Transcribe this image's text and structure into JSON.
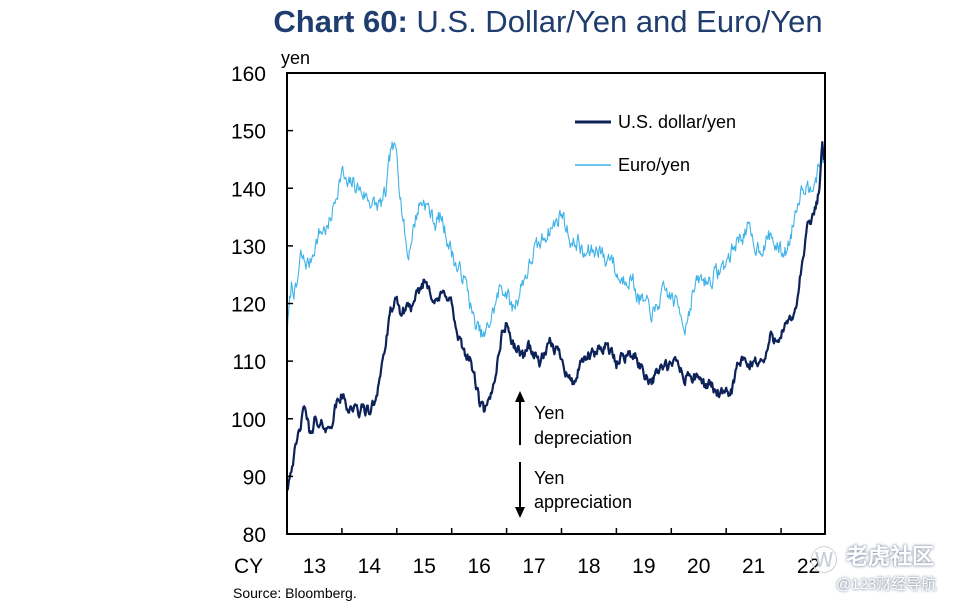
{
  "page": {
    "title_bold": "Chart 60:",
    "title_rest": " U.S. Dollar/Yen and Euro/Yen",
    "source": "Source:  Bloomberg."
  },
  "watermark": {
    "logo": "Ⓦ",
    "name": "老虎社区",
    "sub": "@123财经导航"
  },
  "colors": {
    "usd": "#0d2258",
    "eur": "#3fb3e8",
    "axis": "#000000",
    "title": "#1f3d6e"
  },
  "chart_data": {
    "type": "line",
    "title": "Chart 60: U.S. Dollar/Yen and Euro/Yen",
    "ylabel": "yen",
    "xlabel": "",
    "ylim": [
      80,
      160
    ],
    "yticks": [
      80,
      90,
      100,
      110,
      120,
      130,
      140,
      150,
      160
    ],
    "xlim": [
      2013,
      2022.8
    ],
    "x_prefix": "CY",
    "xtick_labels": [
      "13",
      "14",
      "15",
      "16",
      "17",
      "18",
      "19",
      "20",
      "21",
      "22"
    ],
    "legend": [
      "U.S. dollar/yen",
      "Euro/yen"
    ],
    "annotations": {
      "depreciation_line1": "Yen",
      "depreciation_line2": "depreciation",
      "appreciation_line1": "Yen",
      "appreciation_line2": "appreciation"
    },
    "series": [
      {
        "name": "U.S. dollar/yen",
        "x": [
          2013.0,
          2013.08,
          2013.17,
          2013.25,
          2013.33,
          2013.42,
          2013.5,
          2013.58,
          2013.67,
          2013.75,
          2013.83,
          2013.92,
          2014.0,
          2014.1,
          2014.2,
          2014.3,
          2014.4,
          2014.5,
          2014.6,
          2014.7,
          2014.8,
          2014.9,
          2015.0,
          2015.1,
          2015.2,
          2015.3,
          2015.4,
          2015.5,
          2015.6,
          2015.7,
          2015.8,
          2015.9,
          2016.0,
          2016.1,
          2016.2,
          2016.3,
          2016.4,
          2016.5,
          2016.6,
          2016.7,
          2016.8,
          2016.9,
          2017.0,
          2017.1,
          2017.2,
          2017.3,
          2017.4,
          2017.5,
          2017.6,
          2017.7,
          2017.8,
          2017.9,
          2018.0,
          2018.1,
          2018.2,
          2018.3,
          2018.4,
          2018.5,
          2018.6,
          2018.7,
          2018.8,
          2018.9,
          2019.0,
          2019.1,
          2019.2,
          2019.3,
          2019.4,
          2019.5,
          2019.6,
          2019.7,
          2019.8,
          2019.9,
          2020.0,
          2020.1,
          2020.2,
          2020.25,
          2020.3,
          2020.4,
          2020.5,
          2020.6,
          2020.7,
          2020.8,
          2020.9,
          2021.0,
          2021.1,
          2021.2,
          2021.3,
          2021.4,
          2021.5,
          2021.6,
          2021.7,
          2021.8,
          2021.9,
          2022.0,
          2022.1,
          2022.2,
          2022.3,
          2022.4,
          2022.5,
          2022.6,
          2022.7,
          2022.75,
          2022.8
        ],
        "values": [
          88,
          92,
          95,
          99,
          102,
          97,
          100,
          98,
          99,
          98,
          100,
          103,
          104,
          102,
          102,
          101,
          102,
          101,
          103,
          108,
          113,
          119,
          120,
          118,
          120,
          119,
          122,
          124,
          123,
          120,
          121,
          122,
          120,
          114,
          112,
          111,
          108,
          103,
          101,
          103,
          108,
          114,
          117,
          113,
          112,
          111,
          113,
          111,
          110,
          111,
          113,
          112,
          111,
          108,
          106,
          108,
          110,
          111,
          111,
          112,
          113,
          112,
          109,
          111,
          111,
          111,
          110,
          108,
          107,
          107,
          109,
          109,
          109,
          110,
          108,
          106,
          108,
          107,
          107,
          106,
          106,
          105,
          104,
          104,
          105,
          109,
          110,
          109,
          110,
          110,
          110,
          114,
          114,
          115,
          116,
          117,
          121,
          128,
          134,
          135,
          140,
          148,
          145
        ]
      },
      {
        "name": "Euro/yen",
        "x": [
          2013.0,
          2013.08,
          2013.17,
          2013.25,
          2013.33,
          2013.42,
          2013.5,
          2013.58,
          2013.67,
          2013.75,
          2013.83,
          2013.92,
          2014.0,
          2014.1,
          2014.2,
          2014.3,
          2014.4,
          2014.5,
          2014.6,
          2014.7,
          2014.8,
          2014.9,
          2015.0,
          2015.1,
          2015.2,
          2015.3,
          2015.4,
          2015.5,
          2015.6,
          2015.7,
          2015.8,
          2015.9,
          2016.0,
          2016.1,
          2016.2,
          2016.3,
          2016.4,
          2016.5,
          2016.6,
          2016.7,
          2016.8,
          2016.9,
          2017.0,
          2017.1,
          2017.2,
          2017.3,
          2017.4,
          2017.5,
          2017.6,
          2017.7,
          2017.8,
          2017.9,
          2018.0,
          2018.1,
          2018.2,
          2018.3,
          2018.4,
          2018.5,
          2018.6,
          2018.7,
          2018.8,
          2018.9,
          2019.0,
          2019.1,
          2019.2,
          2019.3,
          2019.4,
          2019.5,
          2019.6,
          2019.7,
          2019.8,
          2019.9,
          2020.0,
          2020.1,
          2020.2,
          2020.25,
          2020.3,
          2020.4,
          2020.5,
          2020.6,
          2020.7,
          2020.8,
          2020.9,
          2021.0,
          2021.1,
          2021.2,
          2021.3,
          2021.4,
          2021.5,
          2021.6,
          2021.7,
          2021.8,
          2021.9,
          2022.0,
          2022.1,
          2022.2,
          2022.3,
          2022.4,
          2022.5,
          2022.6,
          2022.7,
          2022.75,
          2022.8
        ],
        "values": [
          115,
          123,
          122,
          128,
          127,
          127,
          130,
          132,
          133,
          133,
          136,
          140,
          143,
          140,
          141,
          140,
          139,
          138,
          137,
          137,
          139,
          147,
          146,
          136,
          128,
          133,
          137,
          138,
          136,
          134,
          135,
          132,
          129,
          126,
          125,
          122,
          117,
          115,
          114,
          117,
          120,
          123,
          122,
          119,
          121,
          124,
          126,
          129,
          130,
          132,
          133,
          134,
          136,
          133,
          130,
          131,
          128,
          129,
          129,
          130,
          127,
          129,
          125,
          124,
          125,
          124,
          121,
          120,
          119,
          118,
          121,
          122,
          121,
          120,
          118,
          116,
          118,
          122,
          124,
          124,
          124,
          125,
          126,
          127,
          129,
          131,
          132,
          133,
          130,
          130,
          130,
          132,
          130,
          129,
          129,
          133,
          138,
          141,
          140,
          142,
          143,
          146,
          144
        ]
      }
    ]
  }
}
